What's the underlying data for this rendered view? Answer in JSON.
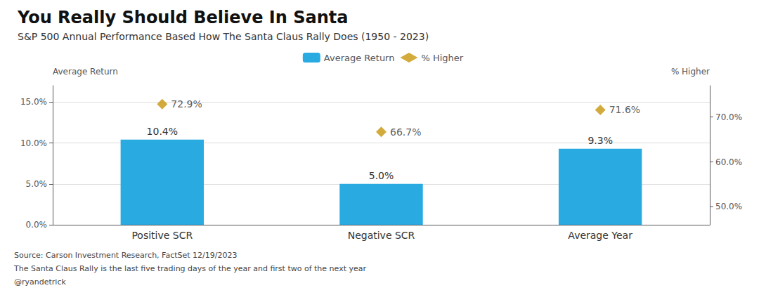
{
  "chart_data": {
    "type": "bar",
    "title": "You Really Should Believe In Santa",
    "subtitle": "S&P 500 Annual Performance Based How The Santa Claus Rally Does (1950 - 2023)",
    "categories": [
      "Positive SCR",
      "Negative SCR",
      "Average Year"
    ],
    "series": [
      {
        "name": "Average Return",
        "type": "bar",
        "color": "#29ABE2",
        "values": [
          10.4,
          5.0,
          9.3
        ],
        "value_labels": [
          "10.4%",
          "5.0%",
          "9.3%"
        ]
      },
      {
        "name": "% Higher",
        "type": "scatter",
        "axis": "y2",
        "marker": "diamond",
        "color": "#C8960C",
        "values": [
          72.9,
          66.7,
          71.6
        ],
        "value_labels": [
          "72.9%",
          "66.7%",
          "71.6%"
        ]
      }
    ],
    "ylabel": "Average Return",
    "y2label": "% Higher",
    "ylim": [
      0,
      17.0
    ],
    "yticks": [
      {
        "value": 0,
        "label": "0.0%"
      },
      {
        "value": 5,
        "label": "5.0%"
      },
      {
        "value": 10,
        "label": "10.0%"
      },
      {
        "value": 15,
        "label": "15.0%"
      }
    ],
    "y2lim": [
      46,
      77
    ],
    "y2ticks": [
      {
        "value": 50,
        "label": "50.0%"
      },
      {
        "value": 60,
        "label": "60.0%"
      },
      {
        "value": 70,
        "label": "70.0%"
      }
    ],
    "grid": true,
    "legend": "top",
    "data_labels": true,
    "annotations": [
      "Source: Carson Investment Research, FactSet 12/19/2023",
      "The Santa Claus Rally is the last five trading days of the year and first two of the next year",
      "@ryandetrick"
    ]
  }
}
